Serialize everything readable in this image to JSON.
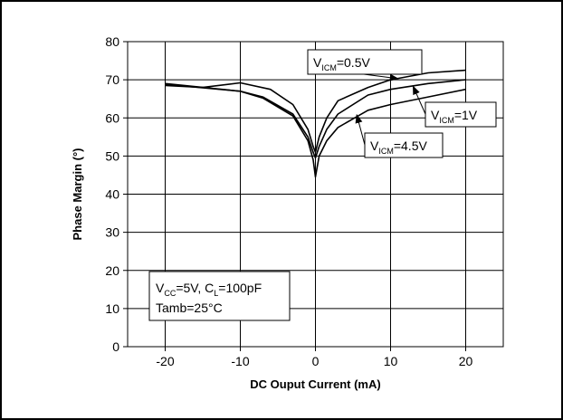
{
  "chart_data": {
    "type": "line",
    "title": "",
    "xlabel": "DC Ouput Current (mA)",
    "ylabel": "Phase Margin (°)",
    "xlim": [
      -25,
      25
    ],
    "ylim": [
      0,
      80
    ],
    "x_ticks": [
      -20,
      -10,
      0,
      10,
      20
    ],
    "x_tick_labels": [
      "-20",
      "-10",
      "0",
      "10",
      "20"
    ],
    "y_ticks": [
      0,
      10,
      20,
      30,
      40,
      50,
      60,
      70,
      80
    ],
    "y_tick_labels": [
      "0",
      "10",
      "20",
      "30",
      "40",
      "50",
      "60",
      "70",
      "80"
    ],
    "grid": true,
    "series": [
      {
        "name": "VICM=0.5V",
        "label_parts": [
          "V",
          "ICM",
          "=0.5V"
        ],
        "points": [
          [
            -20,
            68.5
          ],
          [
            -15,
            68
          ],
          [
            -10,
            69.2
          ],
          [
            -6,
            67.5
          ],
          [
            -3,
            63.5
          ],
          [
            -1,
            57
          ],
          [
            -0.3,
            52.5
          ],
          [
            0,
            51
          ],
          [
            0.5,
            55
          ],
          [
            1.5,
            60
          ],
          [
            3,
            64.5
          ],
          [
            7,
            68
          ],
          [
            10,
            70
          ],
          [
            15,
            71.8
          ],
          [
            20,
            72.5
          ]
        ]
      },
      {
        "name": "VICM=1V",
        "label_parts": [
          "V",
          "ICM",
          "=1V"
        ],
        "points": [
          [
            -20,
            68.8
          ],
          [
            -10,
            67
          ],
          [
            -7,
            65.5
          ],
          [
            -3,
            61
          ],
          [
            -1,
            55
          ],
          [
            -0.3,
            51
          ],
          [
            0,
            49.5
          ],
          [
            0.5,
            52.5
          ],
          [
            1.5,
            57
          ],
          [
            3,
            61
          ],
          [
            7,
            66
          ],
          [
            10,
            67.5
          ],
          [
            15,
            69
          ],
          [
            20,
            70
          ]
        ]
      },
      {
        "name": "VICM=4.5V",
        "label_parts": [
          "V",
          "ICM",
          "=4.5V"
        ],
        "points": [
          [
            -20,
            69
          ],
          [
            -10,
            67
          ],
          [
            -7,
            65.2
          ],
          [
            -3,
            60.5
          ],
          [
            -1,
            54
          ],
          [
            -0.3,
            49
          ],
          [
            0,
            44.5
          ],
          [
            0.5,
            50
          ],
          [
            1.5,
            54
          ],
          [
            3,
            57.5
          ],
          [
            7,
            62
          ],
          [
            10,
            63.5
          ],
          [
            15,
            65.5
          ],
          [
            20,
            67.5
          ]
        ]
      }
    ],
    "annotations": [
      {
        "series": "VICM=0.5V",
        "text_parts": [
          "V",
          "ICM",
          "=0.5V"
        ],
        "arrow_to": [
          11,
          70.3
        ]
      },
      {
        "series": "VICM=1V",
        "text_parts": [
          "V",
          "ICM",
          "=1V"
        ],
        "arrow_to": [
          13,
          68.3
        ]
      },
      {
        "series": "VICM=4.5V",
        "text_parts": [
          "V",
          "ICM",
          "=4.5V"
        ],
        "arrow_to": [
          5.5,
          60.8
        ]
      }
    ],
    "conditions": {
      "line1_parts": [
        "V",
        "CC",
        "=5V, C",
        "L",
        "=100pF"
      ],
      "line2": "Tamb=25°C"
    }
  }
}
